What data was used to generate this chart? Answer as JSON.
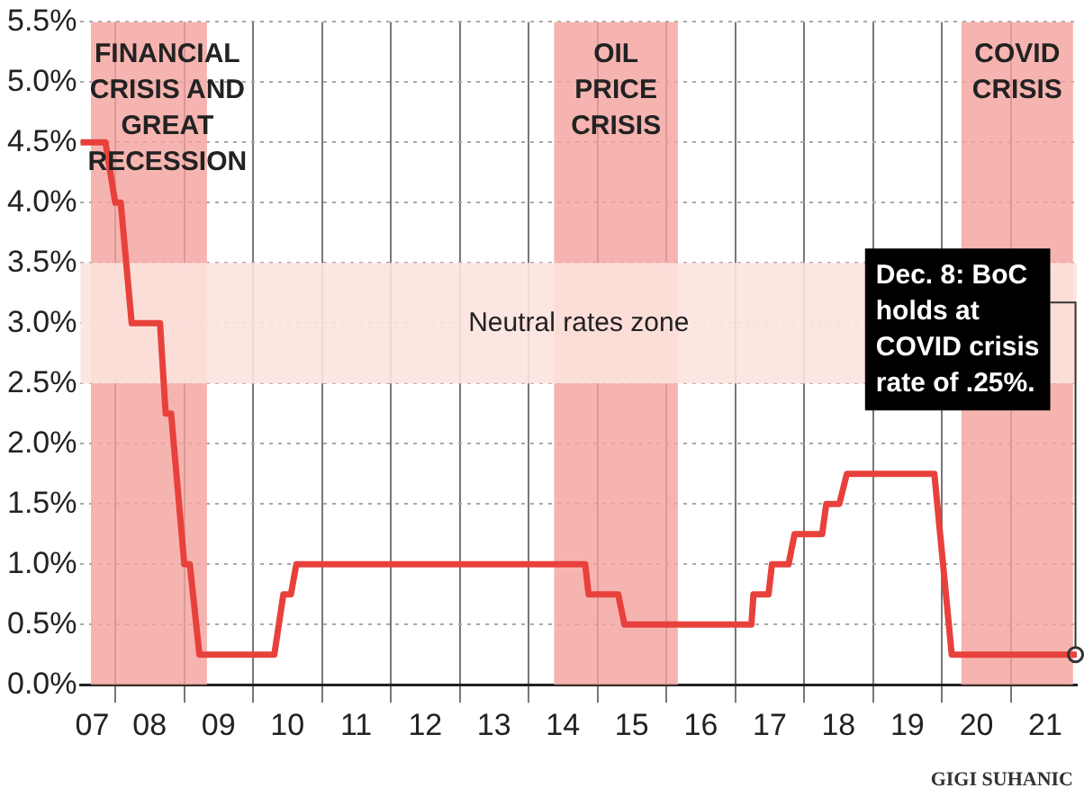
{
  "chart_data": {
    "type": "line",
    "x": [
      "2007-07-04",
      "2007-11-10",
      "2008-01-01",
      "2008-01-30",
      "2008-03-28",
      "2008-08-25",
      "2008-09-24",
      "2008-10-23",
      "2009-01-01",
      "2009-01-30",
      "2009-03-22",
      "2010-04-23",
      "2010-06-10",
      "2010-07-20",
      "2010-08-18",
      "2014-10-27",
      "2014-11-14",
      "2015-04-20",
      "2015-05-23",
      "2017-03-26",
      "2017-04-06",
      "2017-06-25",
      "2017-07-13",
      "2017-10-09",
      "2017-11-10",
      "2018-04-05",
      "2018-04-27",
      "2018-07-05",
      "2018-08-14",
      "2019-11-21",
      "2020-02-21",
      "2021-12-08"
    ],
    "series": [
      {
        "color": "#e8413c",
        "values": [
          4.5,
          4.5,
          4.0,
          4.0,
          3.0,
          3.0,
          2.25,
          2.25,
          1.0,
          1.0,
          0.25,
          0.25,
          0.75,
          0.75,
          1.0,
          1.0,
          0.75,
          0.75,
          0.5,
          0.5,
          0.75,
          0.75,
          1.0,
          1.0,
          1.25,
          1.25,
          1.5,
          1.5,
          1.75,
          1.75,
          0.25,
          0.25
        ]
      }
    ],
    "xlim": [
      "2007-07-01",
      "2021-12-15"
    ],
    "xticks": [
      {
        "value": "2007-09-01",
        "label": "07"
      },
      {
        "value": "2008-01-01",
        "label": null
      },
      {
        "value": "2008-07-01",
        "label": "08"
      },
      {
        "value": "2009-01-01",
        "label": null
      },
      {
        "value": "2009-07-01",
        "label": "09"
      },
      {
        "value": "2010-01-01",
        "label": null
      },
      {
        "value": "2010-07-01",
        "label": "10"
      },
      {
        "value": "2011-01-01",
        "label": null
      },
      {
        "value": "2011-07-01",
        "label": "11"
      },
      {
        "value": "2012-01-01",
        "label": null
      },
      {
        "value": "2012-07-01",
        "label": "12"
      },
      {
        "value": "2013-01-01",
        "label": null
      },
      {
        "value": "2013-07-01",
        "label": "13"
      },
      {
        "value": "2014-01-01",
        "label": null
      },
      {
        "value": "2014-07-01",
        "label": "14"
      },
      {
        "value": "2015-01-01",
        "label": null
      },
      {
        "value": "2015-07-01",
        "label": "15"
      },
      {
        "value": "2016-01-01",
        "label": null
      },
      {
        "value": "2016-07-01",
        "label": "16"
      },
      {
        "value": "2017-01-01",
        "label": null
      },
      {
        "value": "2017-07-01",
        "label": "17"
      },
      {
        "value": "2018-01-01",
        "label": null
      },
      {
        "value": "2018-07-01",
        "label": "18"
      },
      {
        "value": "2019-01-01",
        "label": null
      },
      {
        "value": "2019-07-01",
        "label": "19"
      },
      {
        "value": "2020-01-01",
        "label": null
      },
      {
        "value": "2020-07-01",
        "label": "20"
      },
      {
        "value": "2021-01-01",
        "label": null
      },
      {
        "value": "2021-07-01",
        "label": "21"
      }
    ],
    "ylim": [
      0,
      5.5
    ],
    "yticks": [
      {
        "value": 0,
        "label": "0.0%"
      },
      {
        "value": 0.5,
        "label": "0.5%"
      },
      {
        "value": 1,
        "label": "1.0%"
      },
      {
        "value": 1.5,
        "label": "1.5%"
      },
      {
        "value": 2,
        "label": "2.0%"
      },
      {
        "value": 2.5,
        "label": "2.5%"
      },
      {
        "value": 3,
        "label": "3.0%"
      },
      {
        "value": 3.5,
        "label": "3.5%"
      },
      {
        "value": 4,
        "label": "4.0%"
      },
      {
        "value": 4.5,
        "label": "4.5%"
      },
      {
        "value": 5,
        "label": "5.0%"
      },
      {
        "value": 5.5,
        "label": "5.5%"
      }
    ],
    "grid": true,
    "marker": "none",
    "line_style": "solid",
    "bands": [
      {
        "axis": "x",
        "from": "2007-08-25",
        "to": "2009-05-01",
        "label": "FINANCIAL CRISIS AND GREAT RECESSION",
        "color": "#f4a19c"
      },
      {
        "axis": "x",
        "from": "2014-05-15",
        "to": "2016-03-01",
        "label": "OIL PRICE CRISIS",
        "color": "#f4a19c"
      },
      {
        "axis": "x",
        "from": "2020-04-12",
        "to": "2021-11-25",
        "label": "COVID CRISIS",
        "color": "#f4a19c"
      },
      {
        "axis": "y",
        "from": 2.5,
        "to": 3.5,
        "label": "Neutral rates zone",
        "color": "#fde2de"
      }
    ],
    "annotations": [
      "GIGI SUHANIC",
      {
        "text": "Dec. 8: BoC holds at COVID crisis rate of .25%.",
        "x": "2021-12-08",
        "y": 0.25
      }
    ]
  }
}
